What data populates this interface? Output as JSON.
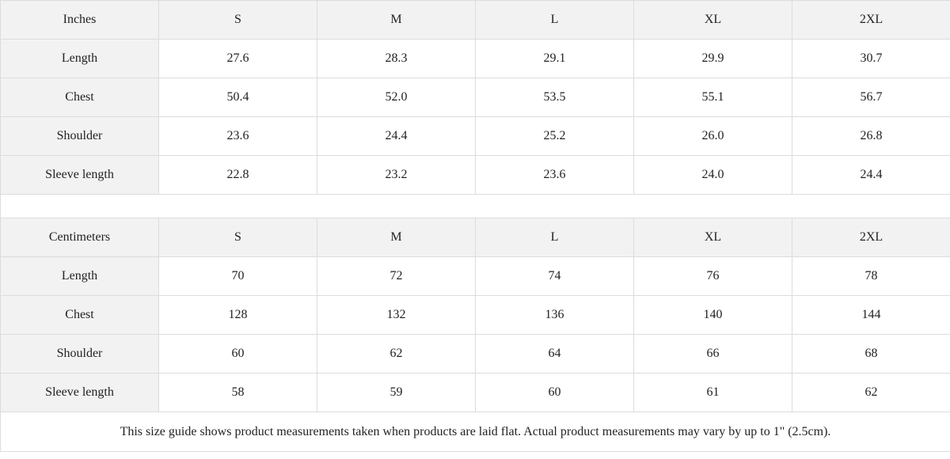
{
  "tables": [
    {
      "unit_label": "Inches",
      "sizes": [
        "S",
        "M",
        "L",
        "XL",
        "2XL"
      ],
      "rows": [
        {
          "label": "Length",
          "values": [
            "27.6",
            "28.3",
            "29.1",
            "29.9",
            "30.7"
          ]
        },
        {
          "label": "Chest",
          "values": [
            "50.4",
            "52.0",
            "53.5",
            "55.1",
            "56.7"
          ]
        },
        {
          "label": "Shoulder",
          "values": [
            "23.6",
            "24.4",
            "25.2",
            "26.0",
            "26.8"
          ]
        },
        {
          "label": "Sleeve length",
          "values": [
            "22.8",
            "23.2",
            "23.6",
            "24.0",
            "24.4"
          ]
        }
      ]
    },
    {
      "unit_label": "Centimeters",
      "sizes": [
        "S",
        "M",
        "L",
        "XL",
        "2XL"
      ],
      "rows": [
        {
          "label": "Length",
          "values": [
            "70",
            "72",
            "74",
            "76",
            "78"
          ]
        },
        {
          "label": "Chest",
          "values": [
            "128",
            "132",
            "136",
            "140",
            "144"
          ]
        },
        {
          "label": "Shoulder",
          "values": [
            "60",
            "62",
            "64",
            "66",
            "68"
          ]
        },
        {
          "label": "Sleeve length",
          "values": [
            "58",
            "59",
            "60",
            "61",
            "62"
          ]
        }
      ]
    }
  ],
  "note": "This size guide shows product measurements taken when products are laid flat.  Actual product measurements may vary by up to 1\" (2.5cm)."
}
